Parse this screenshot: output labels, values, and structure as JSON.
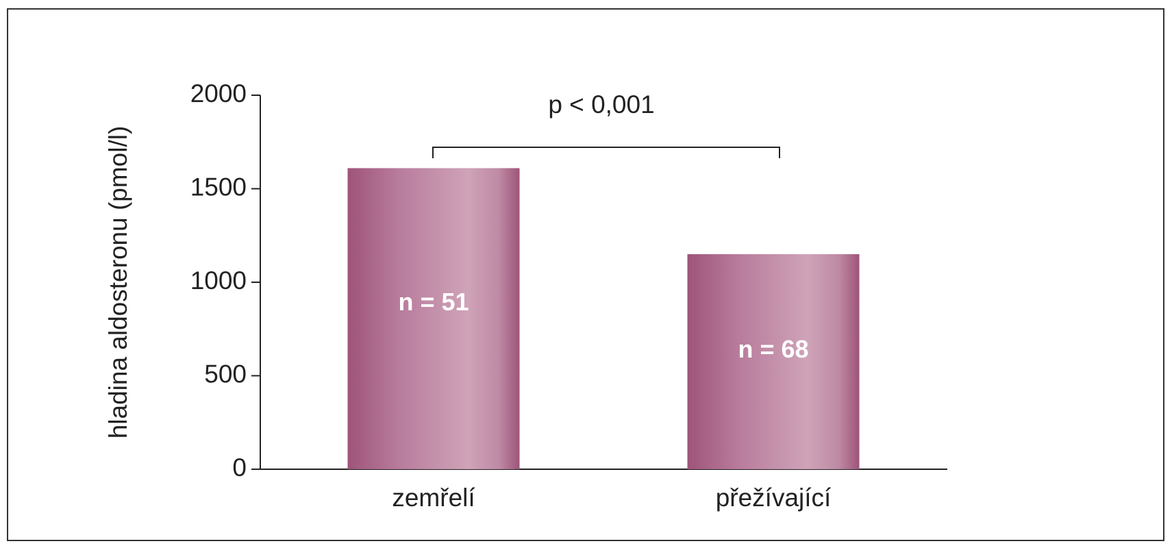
{
  "chart_data": {
    "type": "bar",
    "y_label": "hladina aldosteronu (pmol/l)",
    "annotation": "p < 0,001",
    "categories": [
      "zemřelí",
      "přežívající"
    ],
    "values": [
      1610,
      1150
    ],
    "bar_labels": [
      "n = 51",
      "n = 68"
    ],
    "color": "#9e5478",
    "ylim": [
      0,
      2000
    ],
    "yticks": [
      0,
      500,
      1000,
      1500,
      2000
    ],
    "grid": false
  }
}
